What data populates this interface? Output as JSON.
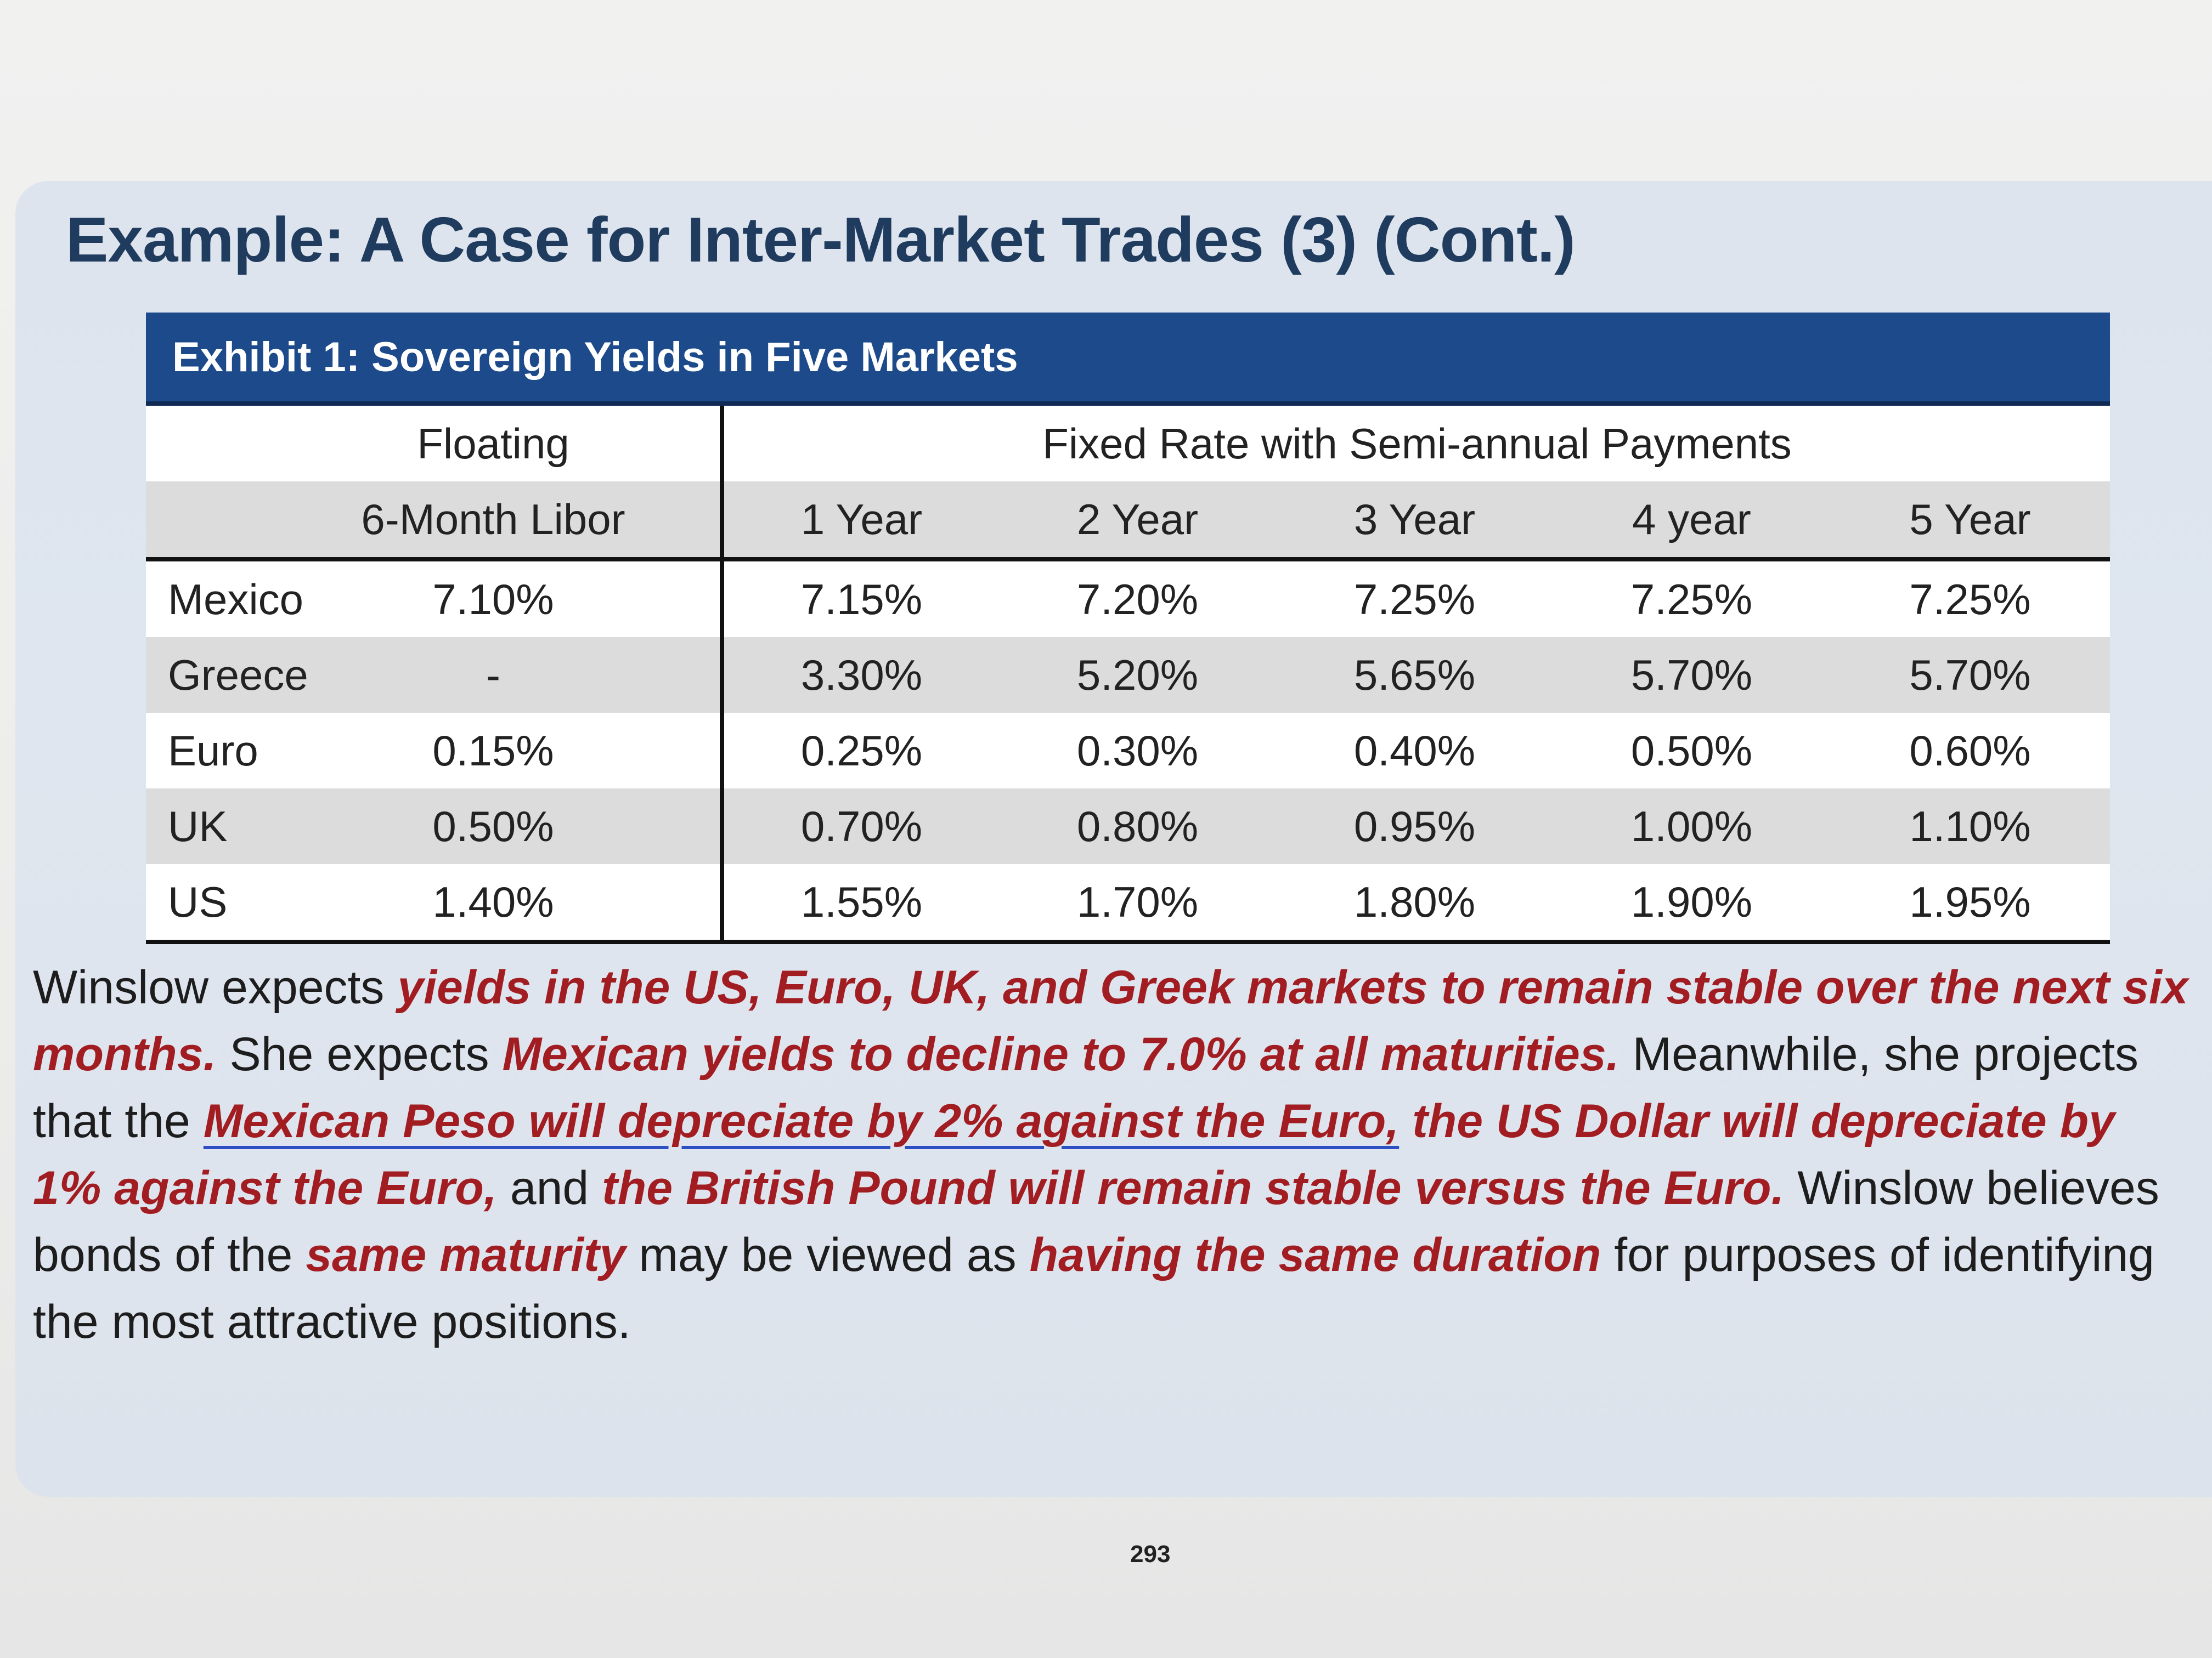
{
  "slide": {
    "title": "Example: A Case for Inter-Market Trades (3) (Cont.)",
    "page_number": "293"
  },
  "exhibit": {
    "caption": "Exhibit 1: Sovereign Yields in Five Markets",
    "group_headers": {
      "floating": "Floating",
      "fixed": "Fixed Rate with Semi-annual Payments"
    },
    "columns": [
      "6-Month Libor",
      "1 Year",
      "2 Year",
      "3 Year",
      "4 year",
      "5 Year"
    ],
    "rows": [
      {
        "country": "Mexico",
        "values": [
          "7.10%",
          "7.15%",
          "7.20%",
          "7.25%",
          "7.25%",
          "7.25%"
        ]
      },
      {
        "country": "Greece",
        "values": [
          "-",
          "3.30%",
          "5.20%",
          "5.65%",
          "5.70%",
          "5.70%"
        ]
      },
      {
        "country": "Euro",
        "values": [
          "0.15%",
          "0.25%",
          "0.30%",
          "0.40%",
          "0.50%",
          "0.60%"
        ]
      },
      {
        "country": "UK",
        "values": [
          "0.50%",
          "0.70%",
          "0.80%",
          "0.95%",
          "1.00%",
          "1.10%"
        ]
      },
      {
        "country": "US",
        "values": [
          "1.40%",
          "1.55%",
          "1.70%",
          "1.80%",
          "1.90%",
          "1.95%"
        ]
      }
    ]
  },
  "paragraph": {
    "t1": "Winslow expects ",
    "h1": "yields in the US, Euro, UK, and Greek markets to remain stable over the next six months.",
    "t2": " She expects ",
    "h2": "Mexican yields to decline to 7.0% at all maturities.",
    "t3": " Meanwhile, she projects that the ",
    "h3": "Mexican Peso will depreciate by 2% against the Euro,",
    "t4": " ",
    "h4": "the US Dollar will depreciate by 1% against the Euro,",
    "t5": " and ",
    "h5": "the British Pound will remain stable versus the Euro.",
    "t6": " Winslow believes bonds of the ",
    "h6": "same maturity",
    "t7": " may be viewed as ",
    "h7": "having the same duration",
    "t8": " for purposes of identifying the most attractive positions."
  }
}
